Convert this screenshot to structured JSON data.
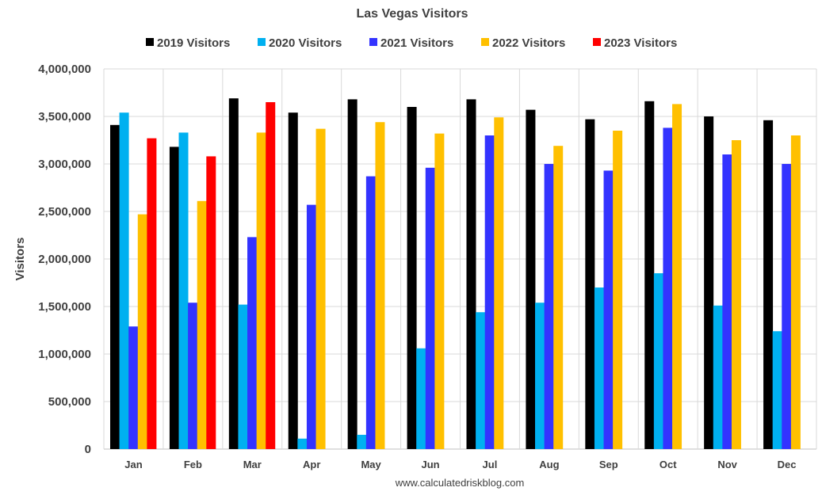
{
  "chart_data": {
    "type": "bar",
    "title": "Las Vegas Visitors",
    "ylabel": "Visitors",
    "xlabel": "",
    "source_text": "www.calculatedriskblog.com",
    "categories": [
      "Jan",
      "Feb",
      "Mar",
      "Apr",
      "May",
      "Jun",
      "Jul",
      "Aug",
      "Sep",
      "Oct",
      "Nov",
      "Dec"
    ],
    "ylim": [
      0,
      4000000
    ],
    "yticks": [
      0,
      500000,
      1000000,
      1500000,
      2000000,
      2500000,
      3000000,
      3500000,
      4000000
    ],
    "ytick_labels": [
      "0",
      "500,000",
      "1,000,000",
      "1,500,000",
      "2,000,000",
      "2,500,000",
      "3,000,000",
      "3,500,000",
      "4,000,000"
    ],
    "grid": true,
    "legend_position": "top",
    "series": [
      {
        "name": "2019 Visitors",
        "color": "#000000",
        "values": [
          3410000,
          3180000,
          3690000,
          3540000,
          3680000,
          3600000,
          3680000,
          3570000,
          3470000,
          3660000,
          3500000,
          3460000
        ]
      },
      {
        "name": "2020 Visitors",
        "color": "#00b0f0",
        "values": [
          3540000,
          3330000,
          1520000,
          110000,
          150000,
          1060000,
          1440000,
          1540000,
          1700000,
          1850000,
          1510000,
          1240000
        ]
      },
      {
        "name": "2021 Visitors",
        "color": "#3333ff",
        "values": [
          1290000,
          1540000,
          2230000,
          2570000,
          2870000,
          2960000,
          3300000,
          3000000,
          2930000,
          3380000,
          3100000,
          3000000
        ]
      },
      {
        "name": "2022 Visitors",
        "color": "#ffc000",
        "values": [
          2470000,
          2610000,
          3330000,
          3370000,
          3440000,
          3320000,
          3490000,
          3190000,
          3350000,
          3630000,
          3250000,
          3300000
        ]
      },
      {
        "name": "2023 Visitors",
        "color": "#ff0000",
        "values": [
          3270000,
          3080000,
          3650000,
          null,
          null,
          null,
          null,
          null,
          null,
          null,
          null,
          null
        ]
      }
    ]
  }
}
